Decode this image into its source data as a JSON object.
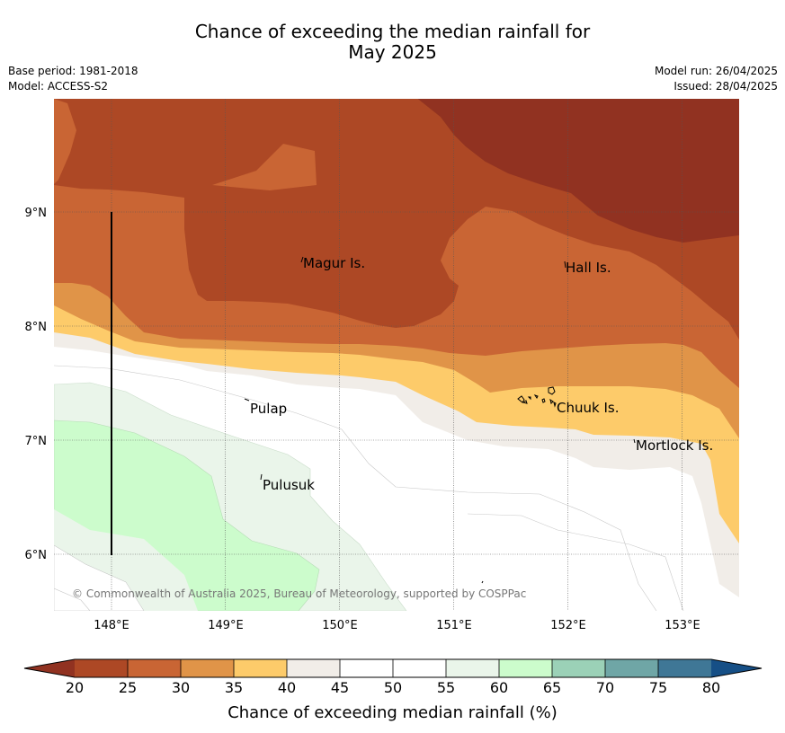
{
  "header": {
    "title_line1": "Chance of exceeding the median rainfall for",
    "title_line2": "May 2025",
    "base_period": "Base period: 1981-2018",
    "model": "Model: ACCESS-S2",
    "model_run": "Model run: 26/04/2025",
    "issued": "Issued: 28/04/2025"
  },
  "map": {
    "lon_ticks": [
      "148°E",
      "149°E",
      "150°E",
      "151°E",
      "152°E",
      "153°E"
    ],
    "lat_ticks": [
      "9°N",
      "8°N",
      "7°N",
      "6°N"
    ],
    "places": [
      "Magur Is.",
      "Hall Is.",
      "Pulap",
      "Chuuk Is.",
      "Mortlock Is.",
      "Pulusuk"
    ],
    "credit": "© Commonwealth of Australia 2025, Bureau of Meteorology, supported by COSPPac"
  },
  "colorbar": {
    "label": "Chance of exceeding median rainfall (%)",
    "ticks": [
      "20",
      "25",
      "30",
      "35",
      "40",
      "45",
      "50",
      "55",
      "60",
      "65",
      "70",
      "75",
      "80"
    ],
    "colors": {
      "under": "#913221",
      "c20_25": "#ad4825",
      "c25_30": "#c96534",
      "c30_35": "#e09448",
      "c35_40": "#fdcb6a",
      "c40_45": "#f1ede8",
      "c45_50": "#ffffff",
      "c50_55": "#ffffff",
      "c55_60": "#eaf5ea",
      "c60_65": "#ccfccc",
      "c65_70": "#9bd1b7",
      "c70_75": "#6fa6a6",
      "c75_80": "#3f7796",
      "over": "#164f86"
    }
  }
}
